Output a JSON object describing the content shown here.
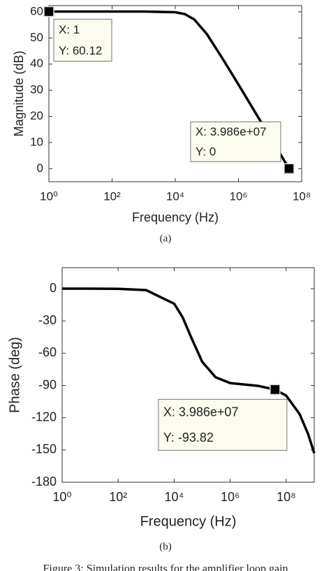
{
  "chart_data": [
    {
      "type": "line",
      "panel_label": "(a)",
      "x_label": "Frequency (Hz)",
      "y_label": "Magnitude (dB)",
      "xscale": "log",
      "color": "#000000",
      "x": [
        1,
        10,
        100,
        1000,
        10000,
        20000,
        40000,
        100000,
        300000,
        1000000,
        3000000,
        10000000,
        39860000
      ],
      "values": [
        60.12,
        60.12,
        60.12,
        60.12,
        59.86,
        59.15,
        57.1,
        51.5,
        42.5,
        32.2,
        22.6,
        12.1,
        0
      ],
      "xlim": [
        1,
        100000000
      ],
      "ylim": [
        -5,
        62.4
      ],
      "xticks": [
        {
          "value": 1,
          "label": "10⁰"
        },
        {
          "value": 100,
          "label": "10²"
        },
        {
          "value": 10000,
          "label": "10⁴"
        },
        {
          "value": 1000000,
          "label": "10⁶"
        },
        {
          "value": 100000000,
          "label": "10⁸"
        }
      ],
      "yticks": [
        0,
        10,
        20,
        30,
        40,
        50,
        60
      ],
      "annotations": [
        {
          "x": 1,
          "y": 60.12,
          "lines": [
            "X: 1",
            "Y: 60.12"
          ]
        },
        {
          "x": 39860000,
          "y": 0,
          "lines": [
            "X: 3.986e+07",
            "Y: 0"
          ]
        }
      ]
    },
    {
      "type": "line",
      "panel_label": "(b)",
      "x_label": "Frequency (Hz)",
      "y_label": "Phase (deg)",
      "xscale": "log",
      "color": "#000000",
      "x": [
        1,
        10,
        100,
        1000,
        10000,
        20000,
        40000,
        100000,
        300000,
        1000000,
        10000000,
        39860000,
        100000000,
        300000000,
        600000000,
        1000000000
      ],
      "values": [
        0,
        -0.01,
        -0.14,
        -1.4,
        -14,
        -26.6,
        -45,
        -68,
        -82.4,
        -87.8,
        -90.4,
        -93.82,
        -99.5,
        -116.6,
        -135,
        -153
      ],
      "xlim": [
        1,
        1000000000
      ],
      "ylim": [
        -180,
        19.5
      ],
      "xticks": [
        {
          "value": 1,
          "label": "10⁰"
        },
        {
          "value": 100,
          "label": "10²"
        },
        {
          "value": 10000,
          "label": "10⁴"
        },
        {
          "value": 1000000,
          "label": "10⁶"
        },
        {
          "value": 100000000,
          "label": "10⁸"
        }
      ],
      "yticks": [
        0,
        -30,
        -60,
        -90,
        -120,
        -150,
        -180
      ],
      "annotations": [
        {
          "x": 39860000,
          "y": -93.82,
          "lines": [
            "X: 3.986e+07",
            "Y: -93.82"
          ]
        }
      ]
    }
  ],
  "caption": "Figure 3: Simulation results for the amplifier loop gain"
}
